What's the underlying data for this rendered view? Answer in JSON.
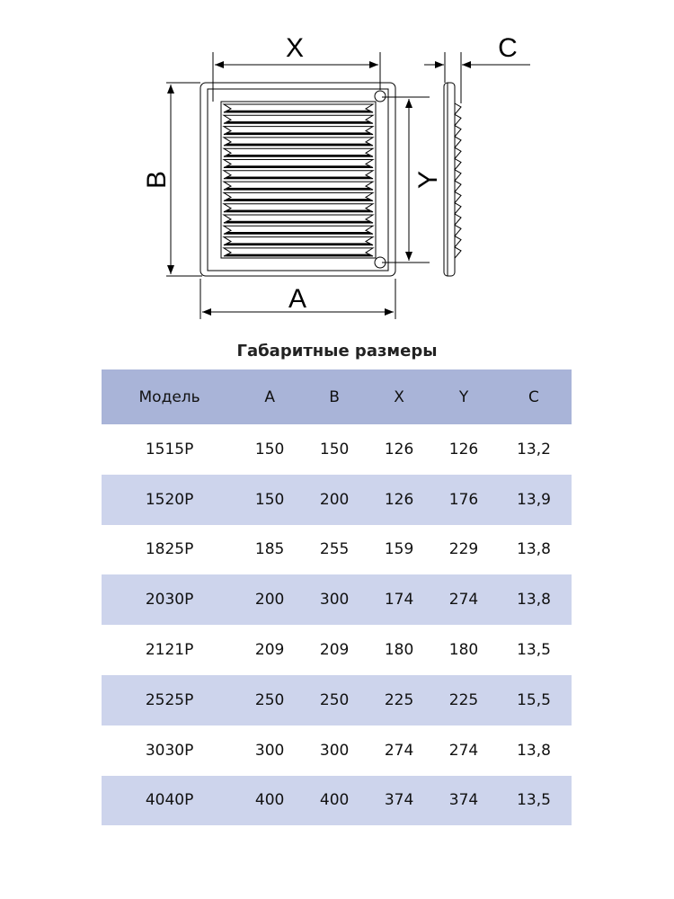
{
  "diagram": {
    "labels": {
      "x": "X",
      "a": "A",
      "b": "B",
      "y": "Y",
      "c": "C"
    }
  },
  "table": {
    "title": "Габаритные размеры",
    "headers": [
      "Модель",
      "A",
      "B",
      "X",
      "Y",
      "C"
    ],
    "rows": [
      [
        "1515P",
        "150",
        "150",
        "126",
        "126",
        "13,2"
      ],
      [
        "1520P",
        "150",
        "200",
        "126",
        "176",
        "13,9"
      ],
      [
        "1825P",
        "185",
        "255",
        "159",
        "229",
        "13,8"
      ],
      [
        "2030P",
        "200",
        "300",
        "174",
        "274",
        "13,8"
      ],
      [
        "2121P",
        "209",
        "209",
        "180",
        "180",
        "13,5"
      ],
      [
        "2525P",
        "250",
        "250",
        "225",
        "225",
        "15,5"
      ],
      [
        "3030P",
        "300",
        "300",
        "274",
        "274",
        "13,8"
      ],
      [
        "4040P",
        "400",
        "400",
        "374",
        "374",
        "13,5"
      ]
    ],
    "colors": {
      "header": "#a9b4d8",
      "alt_row": "#cdd4ec"
    }
  }
}
